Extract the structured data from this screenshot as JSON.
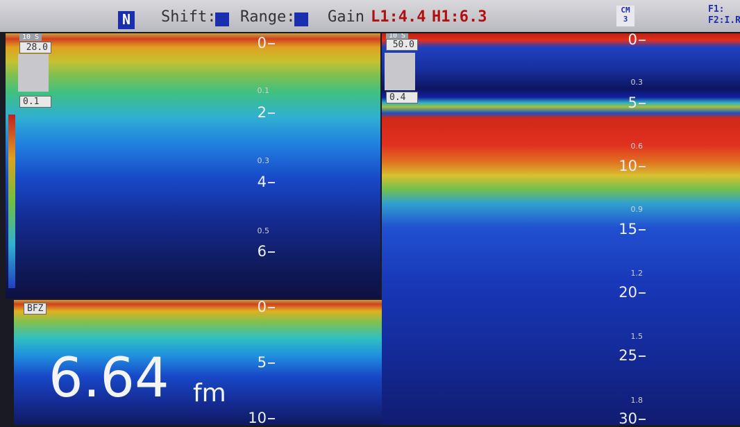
{
  "header": {
    "mode": "N",
    "shift_label": "Shift:",
    "range_label": "Range:",
    "gain_label": "Gain",
    "gain_low": "L1:4.4",
    "gain_high": "H1:6.3",
    "cm_label": "CM",
    "cm_value": "3",
    "f1": "F1:",
    "f2": "F2:I.R"
  },
  "left_panel": {
    "interval": "10 S",
    "range": "28.0",
    "scale": "0.1",
    "depth_labels": [
      "0",
      "2",
      "4",
      "6"
    ],
    "time_labels": [
      "0.1",
      "0.3",
      "0.5"
    ]
  },
  "zoom_panel": {
    "label": "BFZ",
    "depth_labels": [
      "0",
      "5",
      "10"
    ],
    "depth_value": "6.64",
    "unit": "fm"
  },
  "right_panel": {
    "interval": "10 S",
    "range": "50.0",
    "scale": "0.4",
    "depth_labels": [
      "0",
      "5",
      "10",
      "15",
      "20",
      "25",
      "30"
    ],
    "time_labels": [
      "0.3",
      "0.6",
      "0.9",
      "1.2",
      "1.5",
      "1.8"
    ]
  }
}
